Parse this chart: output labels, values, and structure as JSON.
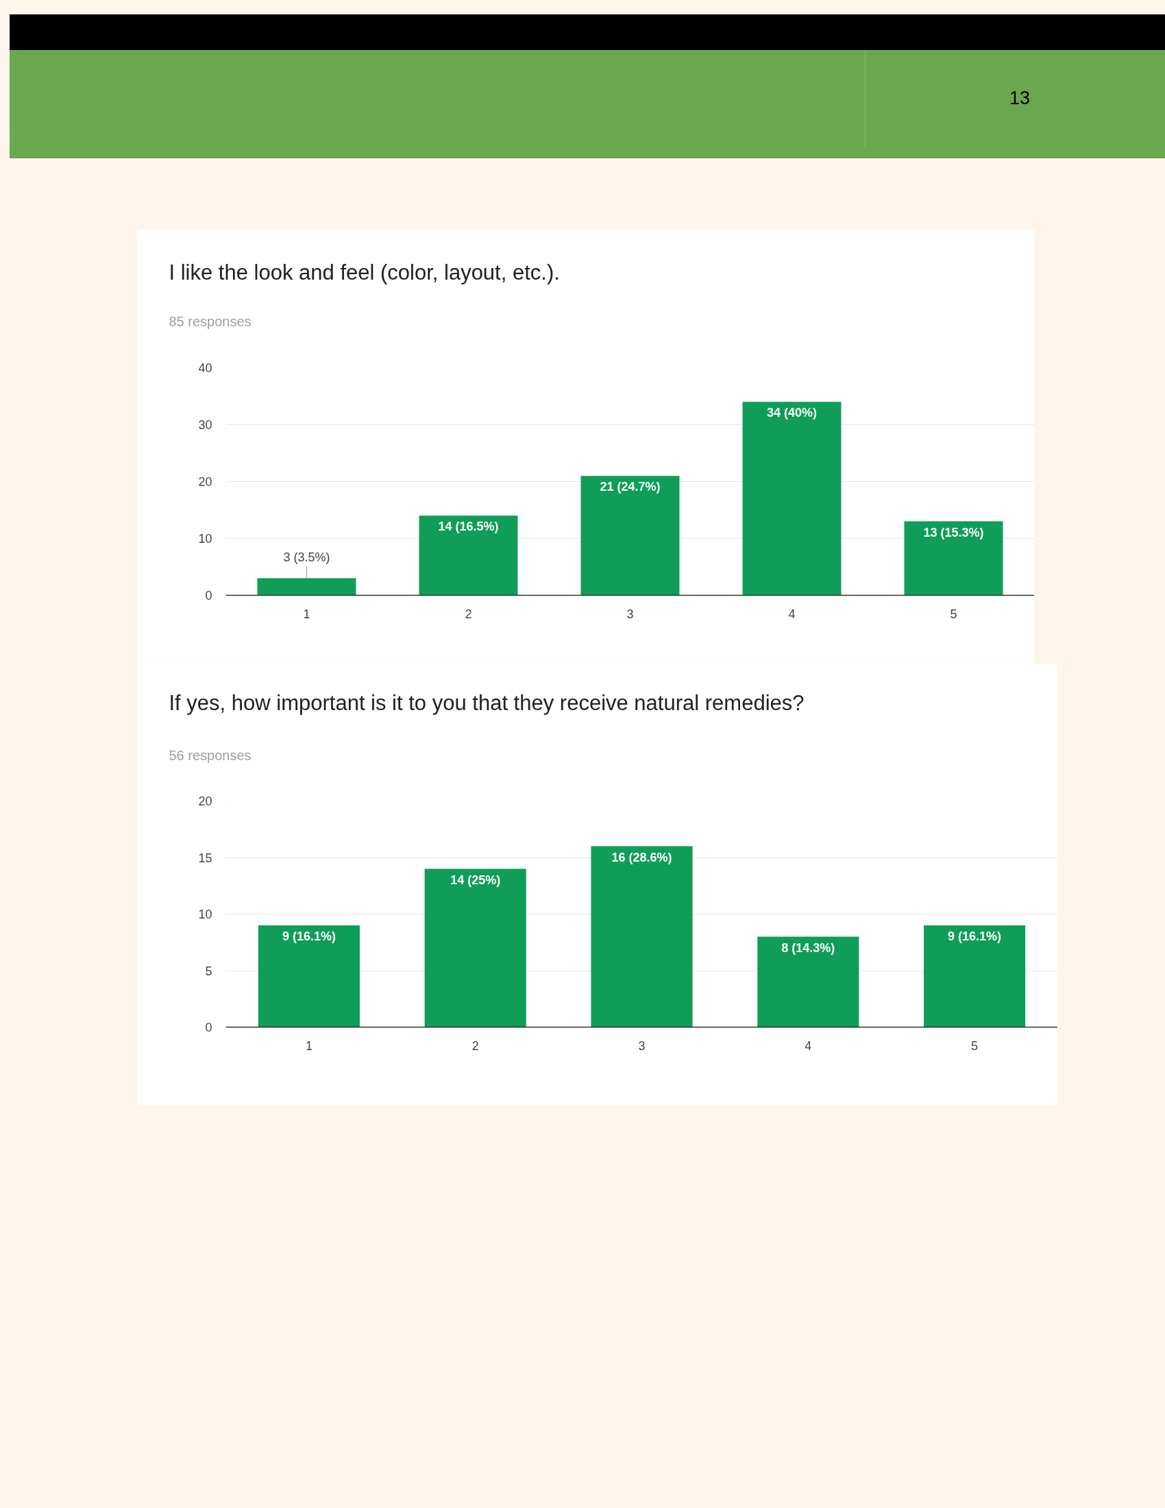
{
  "chart_data": [
    {
      "type": "bar",
      "title": "I like the look and feel (color, layout, etc.).",
      "subtitle": "85 responses",
      "categories": [
        "1",
        "2",
        "3",
        "4",
        "5"
      ],
      "values": [
        3,
        14,
        21,
        34,
        13
      ],
      "value_labels": [
        "3 (3.5%)",
        "14 (16.5%)",
        "21 (24.7%)",
        "34 (40%)",
        "13 (15.3%)"
      ],
      "color": "#0f9d58",
      "ylim": [
        0,
        40
      ],
      "yticks": [
        0,
        10,
        20,
        30,
        40
      ],
      "grid": "y",
      "annotations": [
        "13"
      ]
    },
    {
      "type": "bar",
      "title": "If yes, how important is it to you that they receive natural remedies?",
      "subtitle": "56 responses",
      "categories": [
        "1",
        "2",
        "3",
        "4",
        "5"
      ],
      "values": [
        9,
        14,
        16,
        8,
        9
      ],
      "value_labels": [
        "9 (16.1%)",
        "14 (25%)",
        "16 (28.6%)",
        "8 (14.3%)",
        "9 (16.1%)"
      ],
      "color": "#0f9d58",
      "ylim": [
        0,
        20
      ],
      "yticks": [
        0,
        5,
        10,
        15,
        20
      ],
      "grid": "y"
    }
  ]
}
